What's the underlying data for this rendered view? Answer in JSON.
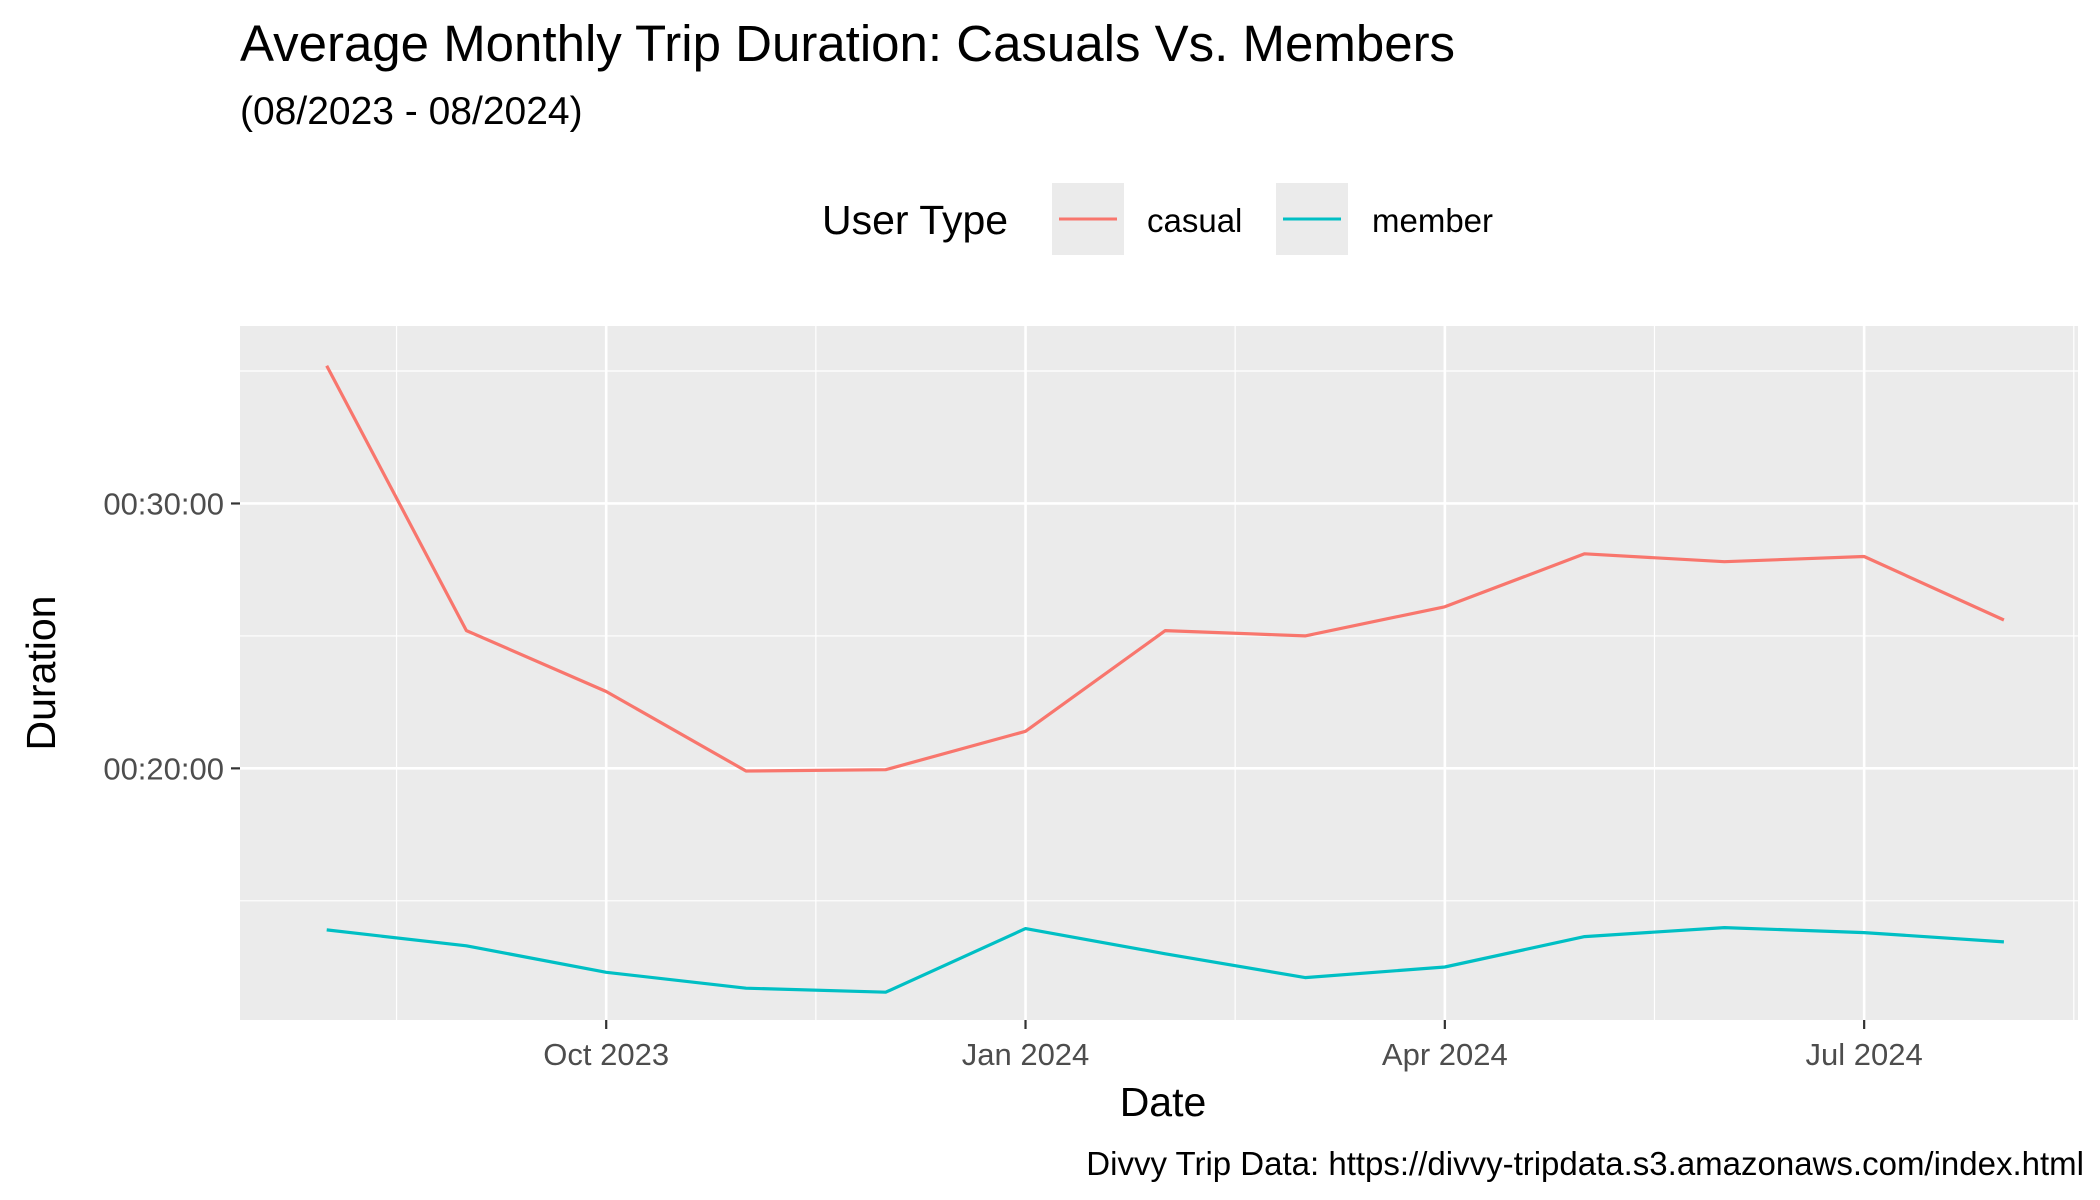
{
  "chart_data": {
    "type": "line",
    "title": "Average Monthly Trip Duration: Casuals Vs. Members",
    "subtitle": "(08/2023 - 08/2024)",
    "xlabel": "Date",
    "ylabel": "Duration",
    "caption": "Divvy Trip Data: https://divvy-tripdata.s3.amazonaws.com/index.html",
    "legend": {
      "title": "User Type",
      "position": "top"
    },
    "x": [
      "2023-08",
      "2023-09",
      "2023-10",
      "2023-11",
      "2023-12",
      "2024-01",
      "2024-02",
      "2024-03",
      "2024-04",
      "2024-05",
      "2024-06",
      "2024-07",
      "2024-08"
    ],
    "x_tick_labels": [
      "Oct 2023",
      "Jan 2024",
      "Apr 2024",
      "Jul 2024"
    ],
    "x_tick_months": [
      2,
      5,
      8,
      11
    ],
    "xlim_months": [
      -0.62,
      12.53
    ],
    "y_tick_labels": [
      "00:20:00",
      "00:30:00"
    ],
    "y_tick_minutes": [
      20,
      30
    ],
    "ylim_minutes": [
      10.5,
      36.7
    ],
    "grid": true,
    "series": [
      {
        "name": "casual",
        "color": "#F8766D",
        "values_minutes": [
          35.2,
          25.2,
          22.9,
          19.9,
          19.95,
          21.4,
          25.2,
          25.0,
          26.1,
          28.1,
          27.8,
          28.0,
          25.6
        ]
      },
      {
        "name": "member",
        "color": "#00BFC4",
        "values_minutes": [
          13.9,
          13.3,
          12.3,
          11.7,
          11.55,
          13.95,
          13.0,
          12.1,
          12.5,
          13.65,
          13.99,
          13.8,
          13.45
        ]
      }
    ]
  }
}
